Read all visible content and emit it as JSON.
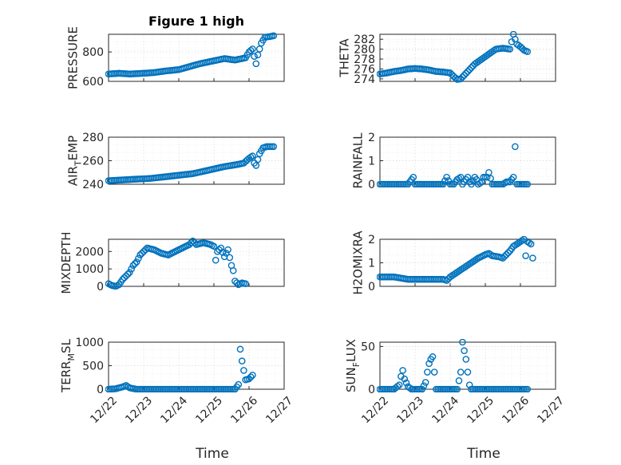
{
  "chart_data": [
    {
      "type": "scatter",
      "title": "Figure 1 high",
      "ylabel": "PRESSURE",
      "ylim": [
        600,
        920
      ],
      "yticks": [
        600,
        800
      ],
      "ytick_labels": [
        "600",
        "800"
      ],
      "show_xticks": false,
      "grid": true,
      "x": [
        "12/22",
        "12/22.5",
        "12/23",
        "12/23.5",
        "12/24",
        "12/24.5",
        "12/25",
        "12/25.2",
        "12/25.35",
        "12/25.5",
        "12/25.6",
        "12/25.75",
        "12/25.85",
        "12/26"
      ],
      "points": [
        [
          0,
          650
        ],
        [
          0.3,
          655
        ],
        [
          0.6,
          650
        ],
        [
          1,
          655
        ],
        [
          1.3,
          660
        ],
        [
          1.6,
          670
        ],
        [
          2,
          680
        ],
        [
          2.3,
          700
        ],
        [
          2.6,
          720
        ],
        [
          3,
          740
        ],
        [
          3.3,
          755
        ],
        [
          3.6,
          745
        ],
        [
          3.9,
          760
        ],
        [
          4,
          800
        ],
        [
          4.1,
          820
        ],
        [
          4.2,
          720
        ],
        [
          4.25,
          780
        ],
        [
          4.35,
          860
        ],
        [
          4.45,
          900
        ],
        [
          4.6,
          905
        ],
        [
          4.7,
          910
        ]
      ]
    },
    {
      "type": "scatter",
      "ylabel": "THETA",
      "ylim": [
        273.5,
        283
      ],
      "yticks": [
        274,
        276,
        278,
        280,
        282
      ],
      "ytick_labels": [
        "274",
        "276",
        "278",
        "280",
        "282"
      ],
      "show_xticks": false,
      "grid": true,
      "points": [
        [
          0,
          275
        ],
        [
          0.2,
          275.2
        ],
        [
          0.4,
          275.5
        ],
        [
          0.6,
          275.7
        ],
        [
          0.8,
          276
        ],
        [
          1,
          276.1
        ],
        [
          1.2,
          276
        ],
        [
          1.4,
          275.8
        ],
        [
          1.6,
          275.5
        ],
        [
          1.8,
          275.4
        ],
        [
          2,
          275.2
        ],
        [
          2.1,
          274.5
        ],
        [
          2.2,
          273.9
        ],
        [
          2.3,
          274
        ],
        [
          2.5,
          275.5
        ],
        [
          2.7,
          277
        ],
        [
          2.9,
          278
        ],
        [
          3.1,
          279
        ],
        [
          3.3,
          280
        ],
        [
          3.5,
          280.2
        ],
        [
          3.7,
          280
        ],
        [
          3.8,
          283
        ],
        [
          3.9,
          281
        ],
        [
          4,
          280.5
        ],
        [
          4.1,
          279.8
        ],
        [
          4.2,
          279.5
        ]
      ]
    },
    {
      "type": "scatter",
      "ylabel": "AIR_TEMP",
      "ylim": [
        240,
        280
      ],
      "yticks": [
        240,
        260,
        280
      ],
      "ytick_labels": [
        "240",
        "260",
        "280"
      ],
      "show_xticks": false,
      "grid": true,
      "points": [
        [
          0,
          243
        ],
        [
          0.3,
          243.5
        ],
        [
          0.6,
          244
        ],
        [
          0.9,
          244.5
        ],
        [
          1.2,
          245
        ],
        [
          1.5,
          246
        ],
        [
          1.8,
          247
        ],
        [
          2.1,
          248
        ],
        [
          2.4,
          249
        ],
        [
          2.7,
          251
        ],
        [
          3,
          253
        ],
        [
          3.3,
          255
        ],
        [
          3.5,
          256
        ],
        [
          3.7,
          257
        ],
        [
          3.85,
          258
        ],
        [
          4,
          262
        ],
        [
          4.1,
          264
        ],
        [
          4.15,
          258
        ],
        [
          4.2,
          256
        ],
        [
          4.3,
          266
        ],
        [
          4.4,
          271
        ],
        [
          4.5,
          272
        ],
        [
          4.6,
          272
        ],
        [
          4.7,
          272
        ]
      ]
    },
    {
      "type": "scatter",
      "ylabel": "RAINFALL",
      "ylim": [
        0,
        2
      ],
      "yticks": [
        0,
        1,
        2
      ],
      "ytick_labels": [
        "0",
        "1",
        "2"
      ],
      "show_xticks": false,
      "grid": true,
      "points": [
        [
          0,
          0
        ],
        [
          0.2,
          0
        ],
        [
          0.4,
          0
        ],
        [
          0.6,
          0
        ],
        [
          0.8,
          0
        ],
        [
          0.95,
          0.3
        ],
        [
          1,
          0
        ],
        [
          1.2,
          0
        ],
        [
          1.4,
          0
        ],
        [
          1.6,
          0
        ],
        [
          1.8,
          0
        ],
        [
          1.9,
          0.3
        ],
        [
          2,
          0
        ],
        [
          2.1,
          0
        ],
        [
          2.2,
          0.2
        ],
        [
          2.3,
          0.3
        ],
        [
          2.35,
          0
        ],
        [
          2.5,
          0.3
        ],
        [
          2.55,
          0.1
        ],
        [
          2.6,
          0
        ],
        [
          2.7,
          0.3
        ],
        [
          2.75,
          0.2
        ],
        [
          2.8,
          0
        ],
        [
          2.9,
          0.1
        ],
        [
          2.95,
          0.3
        ],
        [
          3.05,
          0.3
        ],
        [
          3.1,
          0.5
        ],
        [
          3.2,
          0
        ],
        [
          3.3,
          0
        ],
        [
          3.4,
          0
        ],
        [
          3.5,
          0
        ],
        [
          3.6,
          0.1
        ],
        [
          3.7,
          0.1
        ],
        [
          3.8,
          0.3
        ],
        [
          3.85,
          1.6
        ],
        [
          3.9,
          0
        ],
        [
          4,
          0
        ],
        [
          4.1,
          0
        ],
        [
          4.2,
          0
        ]
      ]
    },
    {
      "type": "scatter",
      "ylabel": "MIXDEPTH",
      "ylim": [
        0,
        2700
      ],
      "yticks": [
        0,
        1000,
        2000
      ],
      "ytick_labels": [
        "0",
        "1000",
        "2000"
      ],
      "show_xticks": false,
      "grid": true,
      "points": [
        [
          0,
          150
        ],
        [
          0.1,
          50
        ],
        [
          0.2,
          0
        ],
        [
          0.3,
          100
        ],
        [
          0.4,
          400
        ],
        [
          0.5,
          600
        ],
        [
          0.6,
          800
        ],
        [
          0.7,
          1200
        ],
        [
          0.8,
          1400
        ],
        [
          0.9,
          1800
        ],
        [
          1,
          2000
        ],
        [
          1.1,
          2200
        ],
        [
          1.3,
          2100
        ],
        [
          1.5,
          1900
        ],
        [
          1.7,
          1800
        ],
        [
          1.9,
          2000
        ],
        [
          2.1,
          2200
        ],
        [
          2.3,
          2400
        ],
        [
          2.4,
          2600
        ],
        [
          2.5,
          2400
        ],
        [
          2.7,
          2500
        ],
        [
          2.9,
          2400
        ],
        [
          3,
          2300
        ],
        [
          3.05,
          1500
        ],
        [
          3.1,
          2000
        ],
        [
          3.2,
          2200
        ],
        [
          3.3,
          1700
        ],
        [
          3.4,
          2100
        ],
        [
          3.5,
          1200
        ],
        [
          3.55,
          900
        ],
        [
          3.6,
          300
        ],
        [
          3.7,
          100
        ],
        [
          3.8,
          200
        ],
        [
          3.9,
          150
        ]
      ]
    },
    {
      "type": "scatter",
      "ylabel": "H2OMIXRA",
      "ylim": [
        0,
        2
      ],
      "yticks": [
        0,
        1,
        2
      ],
      "ytick_labels": [
        "0",
        "1",
        "2"
      ],
      "show_xticks": false,
      "grid": true,
      "points": [
        [
          0,
          0.4
        ],
        [
          0.2,
          0.4
        ],
        [
          0.4,
          0.4
        ],
        [
          0.6,
          0.35
        ],
        [
          0.8,
          0.3
        ],
        [
          1,
          0.3
        ],
        [
          1.2,
          0.3
        ],
        [
          1.4,
          0.3
        ],
        [
          1.6,
          0.3
        ],
        [
          1.8,
          0.3
        ],
        [
          1.9,
          0.25
        ],
        [
          2,
          0.4
        ],
        [
          2.2,
          0.6
        ],
        [
          2.4,
          0.8
        ],
        [
          2.6,
          1.0
        ],
        [
          2.8,
          1.2
        ],
        [
          3,
          1.35
        ],
        [
          3.1,
          1.4
        ],
        [
          3.2,
          1.3
        ],
        [
          3.4,
          1.25
        ],
        [
          3.5,
          1.2
        ],
        [
          3.6,
          1.35
        ],
        [
          3.7,
          1.5
        ],
        [
          3.8,
          1.7
        ],
        [
          3.9,
          1.8
        ],
        [
          4,
          1.9
        ],
        [
          4.1,
          2.0
        ],
        [
          4.15,
          1.3
        ],
        [
          4.2,
          1.9
        ],
        [
          4.3,
          1.8
        ],
        [
          4.35,
          1.2
        ]
      ]
    },
    {
      "type": "scatter",
      "ylabel": "TERR_MSL",
      "ylim": [
        0,
        1000
      ],
      "yticks": [
        0,
        500,
        1000
      ],
      "ytick_labels": [
        "0",
        "500",
        "1000"
      ],
      "xticks": [
        "12/22",
        "12/23",
        "12/24",
        "12/25",
        "12/26",
        "12/27"
      ],
      "xlabel": "Time",
      "show_xticks": true,
      "grid": true,
      "points": [
        [
          0,
          0
        ],
        [
          0.2,
          10
        ],
        [
          0.4,
          50
        ],
        [
          0.5,
          80
        ],
        [
          0.6,
          30
        ],
        [
          0.8,
          0
        ],
        [
          1,
          0
        ],
        [
          1.2,
          0
        ],
        [
          1.4,
          0
        ],
        [
          1.6,
          0
        ],
        [
          1.8,
          0
        ],
        [
          2,
          0
        ],
        [
          2.2,
          0
        ],
        [
          2.4,
          0
        ],
        [
          2.6,
          0
        ],
        [
          2.8,
          0
        ],
        [
          3,
          0
        ],
        [
          3.2,
          0
        ],
        [
          3.4,
          0
        ],
        [
          3.6,
          0
        ],
        [
          3.7,
          100
        ],
        [
          3.75,
          850
        ],
        [
          3.8,
          600
        ],
        [
          3.85,
          400
        ],
        [
          3.9,
          200
        ],
        [
          4,
          220
        ],
        [
          4.1,
          300
        ]
      ]
    },
    {
      "type": "scatter",
      "ylabel": "SUN_FLUX",
      "ylim": [
        0,
        55
      ],
      "yticks": [
        0,
        50
      ],
      "ytick_labels": [
        "0",
        "50"
      ],
      "xticks": [
        "12/22",
        "12/23",
        "12/24",
        "12/25",
        "12/26",
        "12/27"
      ],
      "xlabel": "Time",
      "show_xticks": true,
      "grid": true,
      "points": [
        [
          0,
          0
        ],
        [
          0.2,
          0
        ],
        [
          0.4,
          0
        ],
        [
          0.55,
          5
        ],
        [
          0.6,
          15
        ],
        [
          0.65,
          22
        ],
        [
          0.7,
          12
        ],
        [
          0.8,
          3
        ],
        [
          0.9,
          0
        ],
        [
          1,
          0
        ],
        [
          1.2,
          0
        ],
        [
          1.3,
          8
        ],
        [
          1.35,
          20
        ],
        [
          1.4,
          30
        ],
        [
          1.45,
          35
        ],
        [
          1.5,
          38
        ],
        [
          1.55,
          20
        ],
        [
          1.6,
          0
        ],
        [
          1.8,
          0
        ],
        [
          2,
          0
        ],
        [
          2.2,
          0
        ],
        [
          2.3,
          20
        ],
        [
          2.35,
          55
        ],
        [
          2.4,
          45
        ],
        [
          2.45,
          35
        ],
        [
          2.5,
          20
        ],
        [
          2.55,
          5
        ],
        [
          2.6,
          0
        ],
        [
          2.8,
          0
        ],
        [
          3,
          0
        ],
        [
          3.2,
          0
        ],
        [
          3.4,
          0
        ],
        [
          3.6,
          0
        ],
        [
          3.8,
          0
        ],
        [
          4,
          0
        ],
        [
          4.2,
          0
        ]
      ]
    }
  ]
}
